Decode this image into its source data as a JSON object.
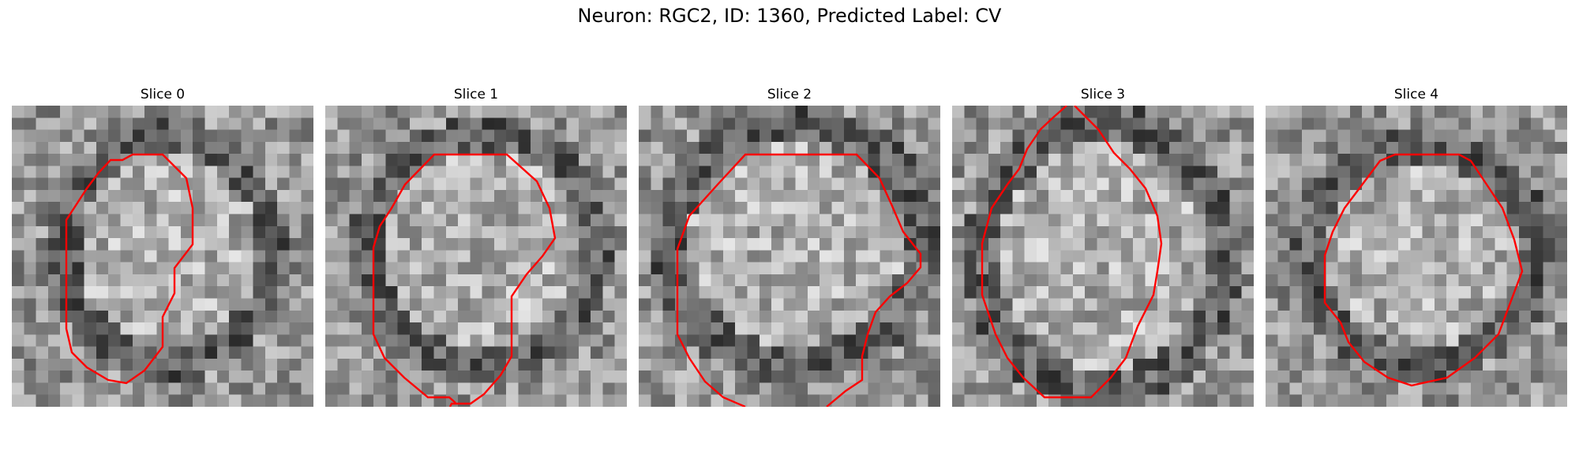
{
  "figure": {
    "title": "Neuron: RGC2, ID: 1360, Predicted Label: CV"
  },
  "panels": [
    {
      "title": "Slice 0"
    },
    {
      "title": "Slice 1"
    },
    {
      "title": "Slice 2"
    },
    {
      "title": "Slice 3"
    },
    {
      "title": "Slice 4"
    }
  ],
  "colors": {
    "contour": "#ff0000",
    "background": "#ffffff"
  }
}
